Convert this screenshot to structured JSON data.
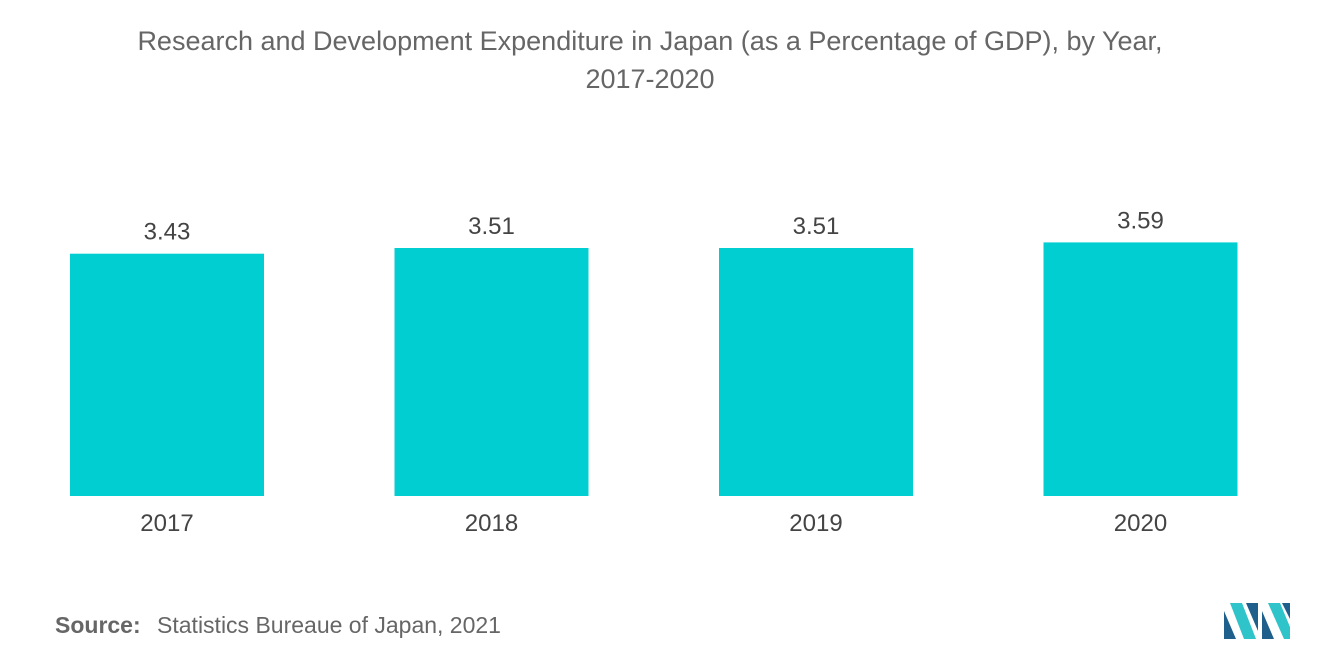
{
  "title": {
    "line1": "Research and Development Expenditure in Japan (as a Percentage of GDP), by Year,",
    "line2": "2017-2020"
  },
  "source": {
    "label": "Source:",
    "text": "Statistics Bureaue of Japan, 2021"
  },
  "logo": {
    "icon": "mordor-intelligence-logo-icon"
  },
  "colors": {
    "bar": "#00CED1",
    "logo_dark": "#1E5F8C",
    "logo_light": "#2EC4C9",
    "text": "#555555"
  },
  "chart_data": {
    "type": "bar",
    "categories": [
      "2017",
      "2018",
      "2019",
      "2020"
    ],
    "values": [
      3.43,
      3.51,
      3.51,
      3.59
    ],
    "data_labels": [
      "3.43",
      "3.51",
      "3.51",
      "3.59"
    ],
    "title": "Research and Development Expenditure in Japan (as a Percentage of GDP), by Year, 2017-2020",
    "xlabel": "",
    "ylabel": "",
    "ylim": [
      0,
      3.68
    ],
    "grid": false,
    "legend": "none"
  }
}
